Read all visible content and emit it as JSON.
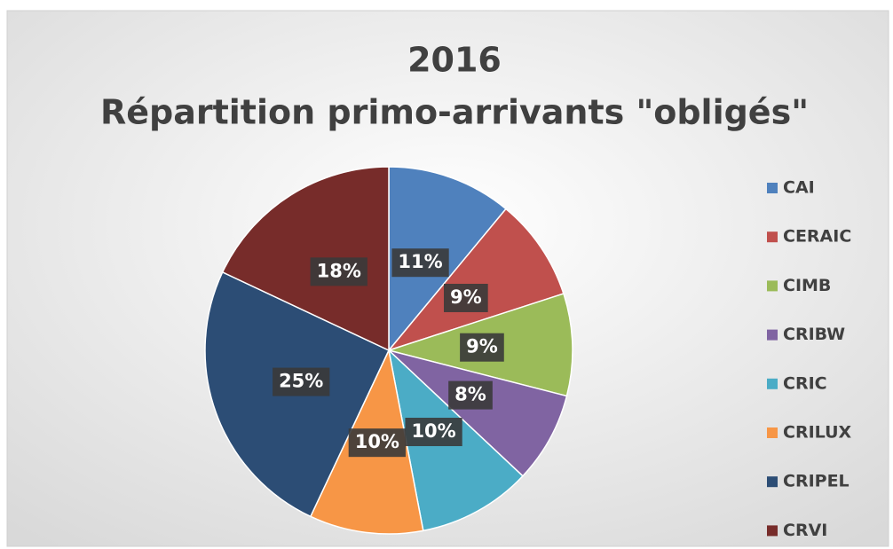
{
  "chart_data": {
    "type": "pie",
    "title_lines": [
      "2016",
      "Répartition primo-arrivants \"obligés\""
    ],
    "categories": [
      "CAI",
      "CERAIC",
      "CIMB",
      "CRIBW",
      "CRIC",
      "CRILUX",
      "CRIPEL",
      "CRVI"
    ],
    "values": [
      11,
      9,
      9,
      8,
      10,
      10,
      25,
      18
    ],
    "value_labels": [
      "11%",
      "9%",
      "9%",
      "8%",
      "10%",
      "10%",
      "25%",
      "18%"
    ],
    "colors": [
      "#4f81bd",
      "#c0504d",
      "#9bbb59",
      "#8064a2",
      "#4bacc6",
      "#f79646",
      "#2c4d75",
      "#772c2a"
    ],
    "legend": "right"
  }
}
